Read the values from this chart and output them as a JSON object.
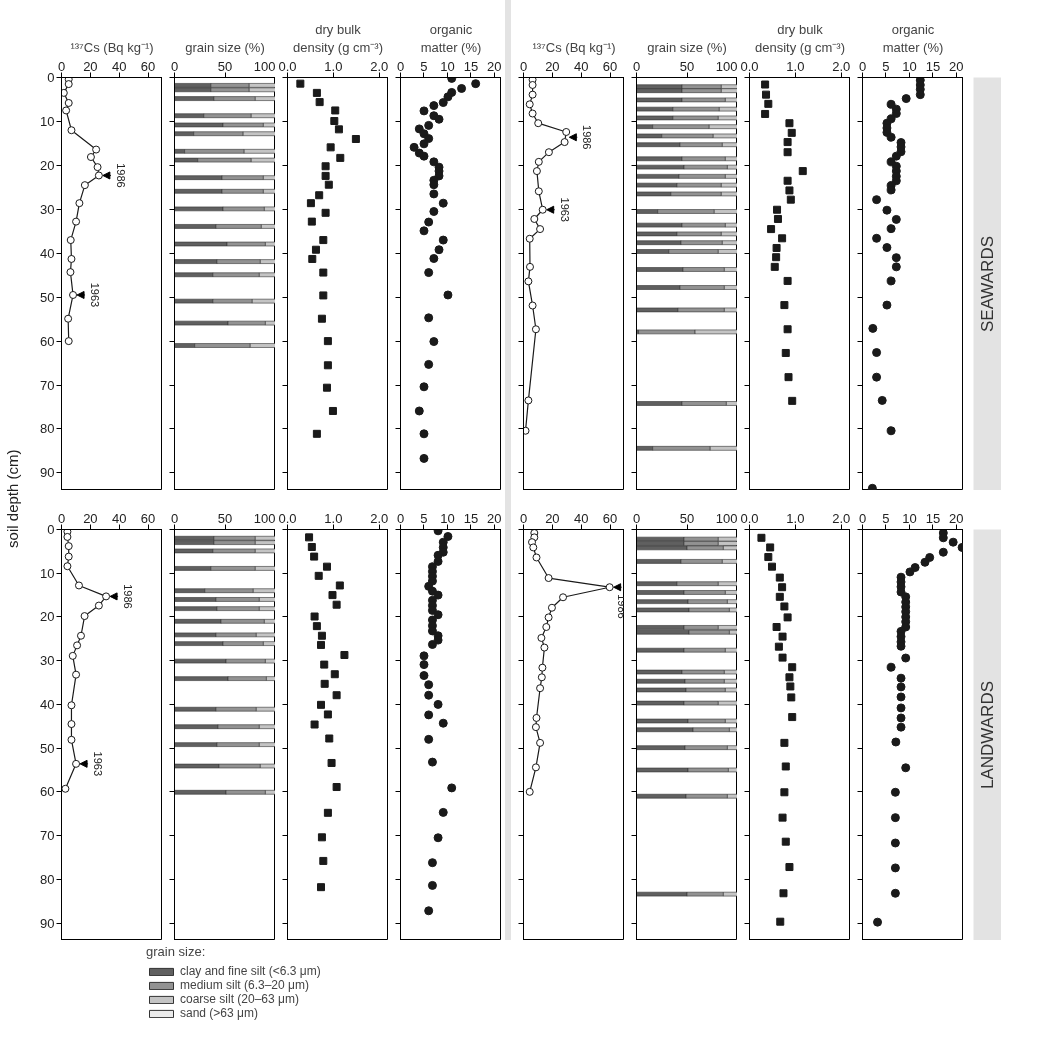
{
  "chart_data": [
    {
      "type": "line",
      "orientation": "horizontal",
      "xlabel": "¹³⁷Cs (Bq kg⁻¹)",
      "ylabel": "soil depth (cm)",
      "color": "#1a1a1a",
      "marker": "circle",
      "x": [
        0.4,
        1.5,
        3.5,
        5.8,
        7.5,
        12.0,
        16.4,
        18.1,
        20.4,
        22.3,
        24.5,
        28.6,
        32.8,
        37.0,
        41.3,
        44.3,
        49.5,
        54.9,
        60.0
      ],
      "values": [
        5.0,
        5.0,
        1.6,
        5.0,
        3.2,
        6.9,
        24.0,
        20.4,
        25.0,
        25.9,
        16.2,
        12.4,
        10.1,
        6.4,
        6.9,
        6.2,
        8.0,
        4.6,
        5.0
      ],
      "xlim": [
        0,
        70
      ],
      "xticks": [
        0,
        20,
        40,
        60
      ],
      "ylim": [
        94,
        0
      ],
      "yticks": [
        0,
        10,
        20,
        30,
        40,
        50,
        60,
        70,
        80,
        90
      ],
      "annotations": [
        {
          "text": "1986",
          "x": 25.9,
          "y": 22.3
        },
        {
          "text": "1963",
          "x": 8.0,
          "y": 49.5
        }
      ]
    },
    {
      "type": "bar",
      "orientation": "horizontal",
      "stacked": true,
      "xlabel": "grain size (%)",
      "tick_labels": "x",
      "x": [
        1.8,
        2.8,
        4.8,
        8.7,
        10.8,
        12.8,
        16.8,
        18.8,
        22.8,
        25.9,
        29.9,
        33.9,
        37.9,
        41.9,
        44.9,
        50.9,
        55.9,
        61.0
      ],
      "series": [
        {
          "color": "#606060",
          "values": [
            36,
            36,
            39,
            29,
            48,
            19,
            10,
            23,
            47,
            47,
            48,
            41,
            52,
            42,
            38,
            38,
            53,
            20
          ]
        },
        {
          "color": "#929292",
          "values": [
            38,
            38,
            41,
            47,
            40,
            49,
            59,
            53,
            41,
            41,
            41,
            45,
            38,
            43,
            46,
            39,
            37,
            55
          ]
        },
        {
          "color": "#c4c4c4",
          "values": [
            26,
            26,
            20,
            24,
            12,
            32,
            31,
            24,
            12,
            12,
            11,
            14,
            10,
            15,
            16,
            23,
            10,
            25
          ]
        }
      ],
      "xlim": [
        0,
        100
      ],
      "xticks": [
        0,
        50,
        100
      ],
      "ylim": [
        94,
        0
      ],
      "yticks": [
        0,
        10,
        20,
        30,
        40,
        50,
        60,
        70,
        80,
        90
      ]
    },
    {
      "type": "scatter",
      "orientation": "horizontal",
      "xlabel": "dry bulk\ndensity (g cm⁻³)",
      "tick_labels": "x",
      "color": "#1a1a1a",
      "marker": "square",
      "x": [
        1.4,
        3.5,
        5.6,
        7.5,
        9.9,
        11.8,
        14.0,
        15.9,
        18.3,
        20.2,
        22.4,
        24.4,
        26.8,
        28.6,
        30.8,
        32.8,
        37.0,
        39.2,
        41.3,
        44.4,
        49.6,
        54.9,
        60.0,
        65.5,
        70.6,
        75.9,
        81.1
      ],
      "values": [
        0.28,
        0.64,
        0.7,
        1.04,
        1.02,
        1.12,
        1.49,
        0.94,
        1.15,
        0.83,
        0.83,
        0.9,
        0.69,
        0.51,
        0.83,
        0.53,
        0.78,
        0.62,
        0.54,
        0.78,
        0.78,
        0.75,
        0.88,
        0.88,
        0.86,
        0.99,
        0.64
      ],
      "xlim": [
        0,
        2.2
      ],
      "xticks": [
        {
          "value": 0,
          "label": "0.0"
        },
        {
          "value": 1,
          "label": "1.0"
        },
        {
          "value": 2,
          "label": "2.0"
        }
      ],
      "ylim": [
        94,
        0
      ],
      "yticks": [
        0,
        10,
        20,
        30,
        40,
        50,
        60,
        70,
        80,
        90
      ]
    },
    {
      "type": "scatter",
      "orientation": "horizontal",
      "xlabel": "organic\nmatter (%)",
      "tick_labels": "x",
      "color": "#1a1a1a",
      "marker": "circle",
      "x": [
        0.2,
        1.4,
        2.5,
        3.4,
        4.4,
        5.7,
        6.4,
        7.6,
        8.7,
        9.5,
        10.9,
        11.7,
        12.8,
        13.9,
        15.1,
        15.9,
        17.2,
        17.9,
        19.2,
        20.4,
        21.3,
        22.4,
        23.4,
        24.4,
        26.5,
        28.6,
        30.5,
        32.9,
        34.9,
        37.0,
        39.2,
        41.2,
        44.4,
        49.5,
        54.7,
        60.1,
        65.3,
        70.4,
        75.9,
        81.1,
        86.7
      ],
      "values": [
        10.9,
        16.0,
        13.0,
        10.9,
        10.1,
        9.1,
        7.1,
        5.0,
        7.1,
        8.2,
        6.0,
        4.0,
        5.0,
        6.0,
        5.0,
        2.9,
        4.0,
        5.0,
        7.1,
        8.2,
        8.2,
        8.2,
        7.1,
        7.1,
        7.1,
        9.1,
        7.1,
        6.0,
        5.0,
        9.1,
        8.2,
        7.1,
        6.0,
        10.1,
        6.0,
        7.1,
        6.0,
        5.0,
        4.0,
        5.0,
        5.0
      ],
      "xlim": [
        0,
        21.5
      ],
      "xticks": [
        0,
        5,
        10,
        15,
        20
      ],
      "ylim": [
        94,
        0
      ],
      "yticks": [
        0,
        10,
        20,
        30,
        40,
        50,
        60,
        70,
        80,
        90
      ]
    },
    {
      "type": "line",
      "orientation": "horizontal",
      "xlabel": "¹³⁷Cs (Bq kg⁻¹)",
      "tick_labels": "x",
      "color": "#1a1a1a",
      "marker": "circle",
      "x": [
        0.5,
        1.7,
        3.9,
        6.1,
        8.2,
        10.4,
        12.4,
        14.7,
        17.0,
        19.2,
        21.3,
        25.9,
        30.1,
        32.2,
        34.5,
        36.7,
        43.1,
        46.4,
        51.9,
        57.3,
        73.5,
        80.4
      ],
      "values": [
        6.3,
        6.3,
        6.3,
        4.3,
        6.3,
        10.2,
        29.6,
        28.5,
        17.6,
        10.6,
        9.3,
        10.6,
        13.3,
        7.5,
        11.5,
        4.3,
        4.5,
        3.4,
        6.3,
        8.6,
        3.4,
        1.4
      ],
      "xlim": [
        0,
        70
      ],
      "xticks": [
        0,
        20,
        40,
        60
      ],
      "ylim": [
        94,
        0
      ],
      "yticks": [
        0,
        10,
        20,
        30,
        40,
        50,
        60,
        70,
        80,
        90
      ],
      "annotations": [
        {
          "text": "1986",
          "x": 29.0,
          "y": 13.6
        },
        {
          "text": "1963",
          "x": 13.3,
          "y": 30.1
        }
      ]
    },
    {
      "type": "bar",
      "orientation": "horizontal",
      "stacked": true,
      "xlabel": "grain size (%)",
      "tick_labels": "x",
      "x": [
        2.1,
        3.0,
        5.1,
        7.2,
        9.2,
        11.2,
        13.3,
        15.3,
        18.5,
        20.4,
        22.5,
        24.5,
        26.5,
        30.5,
        33.6,
        35.6,
        37.6,
        39.6,
        43.7,
        47.8,
        52.9,
        57.9,
        74.2,
        84.4
      ],
      "series": [
        {
          "color": "#606060",
          "values": [
            45,
            45,
            45,
            36,
            36,
            16,
            25,
            43,
            45,
            47,
            42,
            40,
            34,
            21,
            45,
            40,
            44,
            32,
            46,
            43,
            41,
            2,
            45,
            16
          ]
        },
        {
          "color": "#929292",
          "values": [
            39,
            39,
            43,
            46,
            45,
            56,
            51,
            42,
            43,
            43,
            46,
            44,
            50,
            56,
            43,
            44,
            41,
            49,
            41,
            44,
            46,
            56,
            44,
            57
          ]
        },
        {
          "color": "#c4c4c4",
          "values": [
            16,
            16,
            12,
            18,
            19,
            28,
            24,
            15,
            12,
            10,
            12,
            16,
            16,
            23,
            12,
            16,
            15,
            19,
            13,
            13,
            13,
            42,
            11,
            27
          ]
        }
      ],
      "xlim": [
        0,
        100
      ],
      "xticks": [
        0,
        50,
        100
      ],
      "ylim": [
        94,
        0
      ],
      "yticks": [
        0,
        10,
        20,
        30,
        40,
        50,
        60,
        70,
        80,
        90
      ]
    },
    {
      "type": "scatter",
      "orientation": "horizontal",
      "xlabel": "dry bulk\ndensity (g cm⁻³)",
      "tick_labels": "x",
      "color": "#1a1a1a",
      "marker": "square",
      "x": [
        1.6,
        3.9,
        6.0,
        8.3,
        10.4,
        12.6,
        14.7,
        17.0,
        21.3,
        23.5,
        25.7,
        27.8,
        30.1,
        32.2,
        34.5,
        36.6,
        38.8,
        40.9,
        43.1,
        46.3,
        51.8,
        57.3,
        62.7,
        68.2,
        73.6
      ],
      "values": [
        0.34,
        0.36,
        0.41,
        0.34,
        0.87,
        0.92,
        0.83,
        0.83,
        1.16,
        0.83,
        0.87,
        0.9,
        0.6,
        0.62,
        0.47,
        0.71,
        0.59,
        0.58,
        0.55,
        0.83,
        0.76,
        0.83,
        0.79,
        0.85,
        0.93
      ],
      "xlim": [
        0,
        2.2
      ],
      "xticks": [
        {
          "value": 0,
          "label": "0.0"
        },
        {
          "value": 1,
          "label": "1.0"
        },
        {
          "value": 2,
          "label": "2.0"
        }
      ],
      "ylim": [
        94,
        0
      ],
      "yticks": [
        0,
        10,
        20,
        30,
        40,
        50,
        60,
        70,
        80,
        90
      ]
    },
    {
      "type": "scatter",
      "orientation": "horizontal",
      "xlabel": "organic\nmatter (%)",
      "tick_labels": "x",
      "color": "#1a1a1a",
      "marker": "circle",
      "annotations": [
        "SEAWARDS"
      ],
      "x": [
        0.6,
        1.7,
        2.7,
        3.9,
        4.8,
        6.1,
        7.2,
        8.2,
        9.4,
        10.4,
        11.5,
        12.5,
        13.6,
        14.8,
        15.8,
        16.9,
        17.9,
        19.2,
        20.2,
        21.3,
        22.5,
        23.5,
        24.6,
        25.6,
        27.8,
        30.2,
        32.3,
        34.4,
        36.6,
        38.7,
        41.0,
        43.1,
        46.3,
        51.8,
        57.1,
        62.6,
        68.2,
        73.5,
        80.4,
        93.5
      ],
      "values": [
        12.3,
        12.3,
        12.3,
        12.3,
        9.3,
        6.1,
        7.2,
        7.2,
        6.1,
        5.2,
        5.2,
        5.2,
        6.1,
        8.2,
        8.2,
        8.2,
        7.2,
        6.1,
        7.2,
        7.2,
        7.2,
        7.2,
        6.1,
        6.1,
        3.0,
        5.2,
        7.2,
        6.1,
        3.0,
        5.2,
        7.2,
        7.2,
        6.1,
        5.2,
        2.2,
        3.0,
        3.0,
        4.2,
        6.1,
        2.1
      ],
      "xlim": [
        0,
        21.5
      ],
      "xticks": [
        0,
        5,
        10,
        15,
        20
      ],
      "ylim": [
        94,
        0
      ],
      "yticks": [
        0,
        10,
        20,
        30,
        40,
        50,
        60,
        70,
        80,
        90
      ]
    },
    {
      "type": "line",
      "orientation": "horizontal",
      "color": "#1a1a1a",
      "marker": "circle",
      "x": [
        0.5,
        1.7,
        3.8,
        6.2,
        8.4,
        12.8,
        15.3,
        17.4,
        19.8,
        24.3,
        26.5,
        28.9,
        33.2,
        40.2,
        44.5,
        48.1,
        53.6,
        59.3
      ],
      "values": [
        4.1,
        4.1,
        5.0,
        5.0,
        4.1,
        12.1,
        30.9,
        25.9,
        16.0,
        13.5,
        10.8,
        7.8,
        10.1,
        6.9,
        6.9,
        6.9,
        10.1,
        2.7
      ],
      "xlim": [
        0,
        70
      ],
      "xticks": [
        0,
        20,
        40,
        60
      ],
      "ylim": [
        94,
        0
      ],
      "yticks": [
        0,
        10,
        20,
        30,
        40,
        50,
        60,
        70,
        80,
        90
      ],
      "annotations": [
        {
          "text": "1986",
          "x": 30.9,
          "y": 15.3
        },
        {
          "text": "1963",
          "x": 10.1,
          "y": 53.6
        }
      ]
    },
    {
      "type": "bar",
      "orientation": "horizontal",
      "stacked": true,
      "tick_labels": "x",
      "legend": "bottom",
      "legend_title": "grain size:",
      "x": [
        2.0,
        3.0,
        4.9,
        8.9,
        14.0,
        16.0,
        18.1,
        21.0,
        24.1,
        26.1,
        30.1,
        34.1,
        41.1,
        45.1,
        49.2,
        54.1,
        60.1
      ],
      "series": [
        {
          "name": "clay and fine silt (<6.3 μm)",
          "color": "#606060",
          "values": [
            39,
            39,
            38,
            36,
            30,
            41,
            42,
            46,
            41,
            48,
            51,
            53,
            41,
            43,
            42,
            44,
            51
          ]
        },
        {
          "name": "medium silt (6.3–20 μm)",
          "color": "#929292",
          "values": [
            41,
            41,
            42,
            44,
            48,
            43,
            42,
            43,
            40,
            40,
            39,
            38,
            40,
            41,
            42,
            41,
            39
          ]
        },
        {
          "name": "coarse silt (20–63 μm)",
          "color": "#c4c4c4",
          "values": [
            20,
            20,
            20,
            20,
            22,
            16,
            16,
            11,
            19,
            12,
            10,
            9,
            19,
            16,
            16,
            15,
            10
          ]
        },
        {
          "name": "sand (>63 μm)",
          "color": "#ebebeb",
          "values": [
            null,
            null,
            null,
            null,
            null,
            null,
            null,
            null,
            null,
            null,
            null,
            null,
            null,
            null,
            null,
            null,
            null
          ]
        }
      ],
      "xlim": [
        0,
        100
      ],
      "xticks": [
        0,
        50,
        100
      ],
      "ylim": [
        94,
        0
      ],
      "yticks": [
        0,
        10,
        20,
        30,
        40,
        50,
        60,
        70,
        80,
        90
      ]
    },
    {
      "type": "scatter",
      "orientation": "horizontal",
      "tick_labels": "x",
      "color": "#1a1a1a",
      "marker": "square",
      "x": [
        1.8,
        4.0,
        6.2,
        8.5,
        10.6,
        12.8,
        15.0,
        17.2,
        19.9,
        22.1,
        24.3,
        26.4,
        28.7,
        30.9,
        33.1,
        35.3,
        37.9,
        40.1,
        42.3,
        44.6,
        47.8,
        53.4,
        58.9,
        64.8,
        70.4,
        75.8,
        81.8
      ],
      "values": [
        0.47,
        0.53,
        0.58,
        0.86,
        0.68,
        1.14,
        0.98,
        1.07,
        0.59,
        0.64,
        0.75,
        0.73,
        1.24,
        0.8,
        1.03,
        0.81,
        1.07,
        0.73,
        0.88,
        0.59,
        0.91,
        0.96,
        1.07,
        0.88,
        0.75,
        0.78,
        0.73
      ],
      "xlim": [
        0,
        2.2
      ],
      "xticks": [
        {
          "value": 0,
          "label": "0.0"
        },
        {
          "value": 1,
          "label": "1.0"
        },
        {
          "value": 2,
          "label": "2.0"
        }
      ],
      "ylim": [
        94,
        0
      ],
      "yticks": [
        0,
        10,
        20,
        30,
        40,
        50,
        60,
        70,
        80,
        90
      ]
    },
    {
      "type": "scatter",
      "orientation": "horizontal",
      "tick_labels": "x",
      "color": "#1a1a1a",
      "marker": "circle",
      "x": [
        0.3,
        1.6,
        2.9,
        4.1,
        5.2,
        5.9,
        7.3,
        8.5,
        9.6,
        10.7,
        11.8,
        13.0,
        14.1,
        15.0,
        16.2,
        17.4,
        18.5,
        19.5,
        20.7,
        22.0,
        23.2,
        24.3,
        25.3,
        26.3,
        28.9,
        30.9,
        33.4,
        35.5,
        37.9,
        40.0,
        42.4,
        44.3,
        48.0,
        53.2,
        59.1,
        64.7,
        70.5,
        76.2,
        81.4,
        87.2
      ],
      "values": [
        8.0,
        10.1,
        9.1,
        9.1,
        9.1,
        8.0,
        8.0,
        6.8,
        6.8,
        6.8,
        6.8,
        6.0,
        6.8,
        8.0,
        6.8,
        6.8,
        6.8,
        8.0,
        6.8,
        6.8,
        6.8,
        8.0,
        8.0,
        6.8,
        5.0,
        5.0,
        5.0,
        6.0,
        6.0,
        8.0,
        6.0,
        9.1,
        6.0,
        6.8,
        10.9,
        9.1,
        8.0,
        6.8,
        6.8,
        6.0
      ],
      "xlim": [
        0,
        21.5
      ],
      "xticks": [
        0,
        5,
        10,
        15,
        20
      ],
      "ylim": [
        94,
        0
      ],
      "yticks": [
        0,
        10,
        20,
        30,
        40,
        50,
        60,
        70,
        80,
        90
      ]
    },
    {
      "type": "line",
      "orientation": "horizontal",
      "tick_labels": "x",
      "color": "#1a1a1a",
      "marker": "circle",
      "x": [
        0.8,
        1.8,
        2.9,
        4.1,
        6.4,
        11.1,
        13.2,
        15.5,
        17.9,
        20.1,
        22.3,
        24.8,
        27.0,
        31.6,
        33.8,
        36.3,
        43.1,
        45.2,
        48.8,
        54.4,
        60.0
      ],
      "values": [
        7.5,
        7.5,
        5.9,
        6.8,
        9.0,
        17.4,
        59.7,
        27.4,
        19.7,
        17.4,
        15.8,
        12.4,
        14.5,
        13.1,
        12.7,
        11.5,
        9.0,
        8.6,
        11.5,
        8.6,
        4.3
      ],
      "xlim": [
        0,
        70
      ],
      "xticks": [
        0,
        20,
        40,
        60
      ],
      "ylim": [
        94,
        0
      ],
      "yticks": [
        0,
        10,
        20,
        30,
        40,
        50,
        60,
        70,
        80,
        90
      ],
      "annotations": [
        {
          "text": "1986",
          "x": 59.7,
          "y": 13.2
        }
      ]
    },
    {
      "type": "bar",
      "orientation": "horizontal",
      "stacked": true,
      "tick_labels": "x",
      "x": [
        2.2,
        3.2,
        4.2,
        7.3,
        12.4,
        14.4,
        16.5,
        18.4,
        22.4,
        23.5,
        27.6,
        32.6,
        34.7,
        36.7,
        39.7,
        43.8,
        45.8,
        49.9,
        55.0,
        61.0,
        83.4
      ],
      "series": [
        {
          "color": "#606060",
          "values": [
            47,
            47,
            50,
            44,
            40,
            47,
            51,
            52,
            47,
            52,
            47,
            45,
            48,
            49,
            47,
            51,
            56,
            48,
            51,
            49,
            50
          ]
        },
        {
          "color": "#929292",
          "values": [
            34,
            34,
            36,
            41,
            41,
            41,
            39,
            40,
            34,
            40,
            41,
            42,
            39,
            39,
            34,
            37,
            36,
            42,
            40,
            41,
            36
          ]
        },
        {
          "color": "#c4c4c4",
          "values": [
            19,
            19,
            14,
            15,
            19,
            12,
            10,
            8,
            19,
            8,
            12,
            13,
            13,
            12,
            19,
            12,
            8,
            10,
            9,
            10,
            14
          ]
        }
      ],
      "xlim": [
        0,
        100
      ],
      "xticks": [
        0,
        50,
        100
      ],
      "ylim": [
        94,
        0
      ],
      "yticks": [
        0,
        10,
        20,
        30,
        40,
        50,
        60,
        70,
        80,
        90
      ]
    },
    {
      "type": "scatter",
      "orientation": "horizontal",
      "tick_labels": "x",
      "color": "#1a1a1a",
      "marker": "square",
      "x": [
        1.9,
        4.1,
        6.3,
        8.5,
        11.0,
        13.2,
        15.4,
        17.6,
        20.1,
        22.3,
        24.5,
        26.8,
        29.3,
        31.5,
        33.8,
        35.9,
        38.4,
        42.9,
        48.8,
        54.2,
        60.1,
        65.9,
        71.4,
        77.2,
        83.2,
        89.7
      ],
      "values": [
        0.26,
        0.45,
        0.41,
        0.49,
        0.66,
        0.71,
        0.66,
        0.76,
        0.83,
        0.59,
        0.72,
        0.64,
        0.72,
        0.93,
        0.87,
        0.89,
        0.91,
        0.93,
        0.76,
        0.79,
        0.76,
        0.72,
        0.79,
        0.87,
        0.74,
        0.67
      ],
      "xlim": [
        0,
        2.2
      ],
      "xticks": [
        {
          "value": 0,
          "label": "0.0"
        },
        {
          "value": 1,
          "label": "1.0"
        },
        {
          "value": 2,
          "label": "2.0"
        }
      ],
      "ylim": [
        94,
        0
      ],
      "yticks": [
        0,
        10,
        20,
        30,
        40,
        50,
        60,
        70,
        80,
        90
      ]
    },
    {
      "type": "scatter",
      "orientation": "horizontal",
      "tick_labels": "x",
      "color": "#1a1a1a",
      "marker": "circle",
      "annotations": [
        "LANDWARDS"
      ],
      "x": [
        0.8,
        1.9,
        2.9,
        4.1,
        5.2,
        6.4,
        7.5,
        8.7,
        9.7,
        10.9,
        12.0,
        13.1,
        14.3,
        15.4,
        16.6,
        17.7,
        18.8,
        20.0,
        21.1,
        22.3,
        23.3,
        24.5,
        25.7,
        26.7,
        29.4,
        31.5,
        34.0,
        36.0,
        38.3,
        40.8,
        43.1,
        45.2,
        48.6,
        54.5,
        60.1,
        65.9,
        71.7,
        77.4,
        83.2,
        89.8
      ],
      "values": [
        17.2,
        17.2,
        19.3,
        21.2,
        17.2,
        14.3,
        13.3,
        11.2,
        10.1,
        8.2,
        8.2,
        8.2,
        8.2,
        9.2,
        9.2,
        9.2,
        9.2,
        9.2,
        9.2,
        9.2,
        8.2,
        8.2,
        8.2,
        8.2,
        9.2,
        6.1,
        8.2,
        8.2,
        8.2,
        8.2,
        8.2,
        8.2,
        7.1,
        9.2,
        7.0,
        7.0,
        7.0,
        7.0,
        7.0,
        3.2
      ],
      "xlim": [
        0,
        21.5
      ],
      "xticks": [
        0,
        5,
        10,
        15,
        20
      ],
      "ylim": [
        94,
        0
      ],
      "yticks": [
        0,
        10,
        20,
        30,
        40,
        50,
        60,
        70,
        80,
        90
      ]
    }
  ]
}
